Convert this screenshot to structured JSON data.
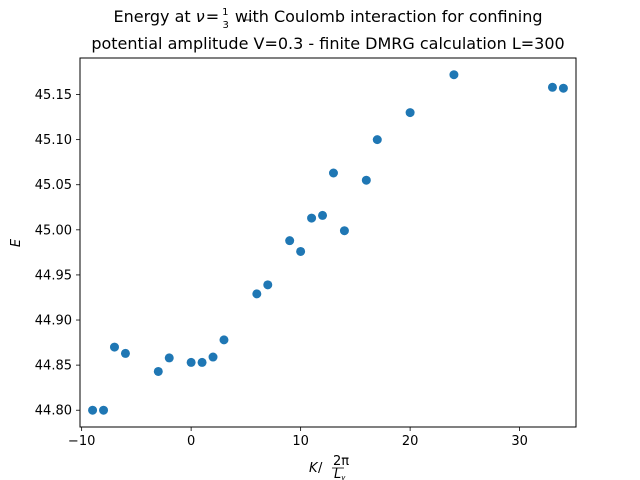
{
  "chart_data": {
    "type": "scatter",
    "title_line1_a": "Energy at ",
    "title_nu": "ν",
    "title_eq": "=",
    "title_frac_num": "1",
    "title_frac_den": "3",
    "title_line1_b": " with Coulomb interaction for confining",
    "title_line2": "potential amplitude V=0.3 - finite DMRG calculation L=300",
    "xlabel_k": "K",
    "xlabel_sep": " / ",
    "xlabel_frac_num": "2π",
    "xlabel_frac_den": "L",
    "xlabel_frac_den_sub": "y",
    "ylabel": "E",
    "xlim": [
      -10.15,
      35.15
    ],
    "ylim": [
      44.7814,
      45.1905
    ],
    "xticks": [
      -10,
      0,
      10,
      20,
      30
    ],
    "xtick_labels": [
      "−10",
      "0",
      "10",
      "20",
      "30"
    ],
    "yticks": [
      44.8,
      44.85,
      44.9,
      44.95,
      45.0,
      45.05,
      45.1,
      45.15
    ],
    "ytick_labels": [
      "44.80",
      "44.85",
      "44.90",
      "44.95",
      "45.00",
      "45.05",
      "45.10",
      "45.15"
    ],
    "grid": false,
    "marker_color": "#1f77b4",
    "x": [
      -9,
      -8,
      -7,
      -6,
      -3,
      -2,
      0,
      1,
      2,
      3,
      6,
      7,
      9,
      10,
      11,
      12,
      13,
      14,
      16,
      17,
      20,
      24,
      33,
      34
    ],
    "y": [
      44.8,
      44.8,
      44.87,
      44.863,
      44.843,
      44.858,
      44.853,
      44.853,
      44.859,
      44.878,
      44.929,
      44.939,
      44.988,
      44.976,
      45.013,
      45.016,
      45.063,
      44.999,
      45.055,
      45.1,
      45.13,
      45.172,
      45.158,
      45.157
    ]
  }
}
